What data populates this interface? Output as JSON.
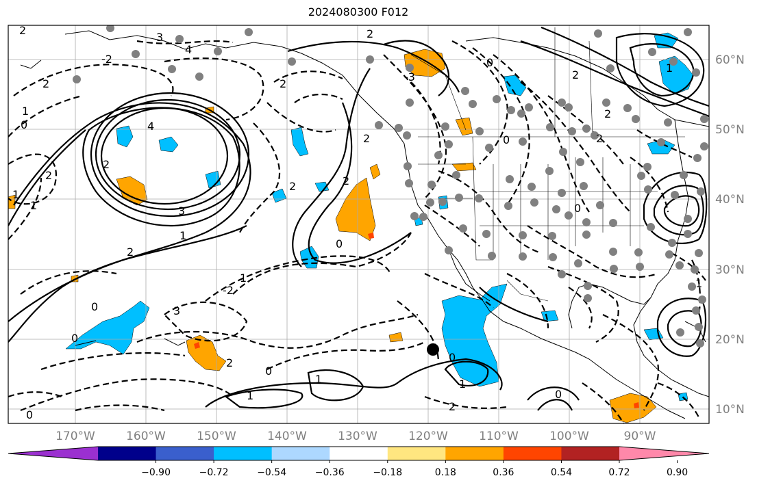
{
  "title": "2024080300 F012",
  "longitude_labels": [
    "170°W",
    "160°W",
    "150°W",
    "140°W",
    "130°W",
    "120°W",
    "110°W",
    "100°W",
    "90°W"
  ],
  "latitude_labels": [
    "60°N",
    "50°N",
    "40°N",
    "30°N",
    "20°N",
    "10°N"
  ],
  "colorbar": {
    "ticks": [
      "−0.90",
      "−0.72",
      "−0.54",
      "−0.36",
      "−0.18",
      "0.18",
      "0.36",
      "0.54",
      "0.72",
      "0.90"
    ],
    "colors": [
      "#9b30d0",
      "#00008b",
      "#3a5fcd",
      "#00bfff",
      "#add8ff",
      "#ffffff",
      "#ffe680",
      "#ffa500",
      "#ff4500",
      "#b22222",
      "#ff88aa"
    ]
  },
  "contour_labels": [
    "2",
    "3",
    "4",
    "-2",
    "2",
    "0",
    "1",
    "4",
    "2",
    "3",
    "1",
    "2",
    "1",
    "0",
    "2",
    "1",
    "2",
    "2",
    "2",
    "0",
    "3",
    "0",
    "2",
    "1",
    "0",
    "1",
    "1",
    "1",
    "-2",
    "-3",
    "2",
    "2",
    "0",
    "0",
    "2",
    "1",
    "2",
    "2",
    "0",
    "0",
    "2",
    "0",
    "1",
    "0"
  ]
}
